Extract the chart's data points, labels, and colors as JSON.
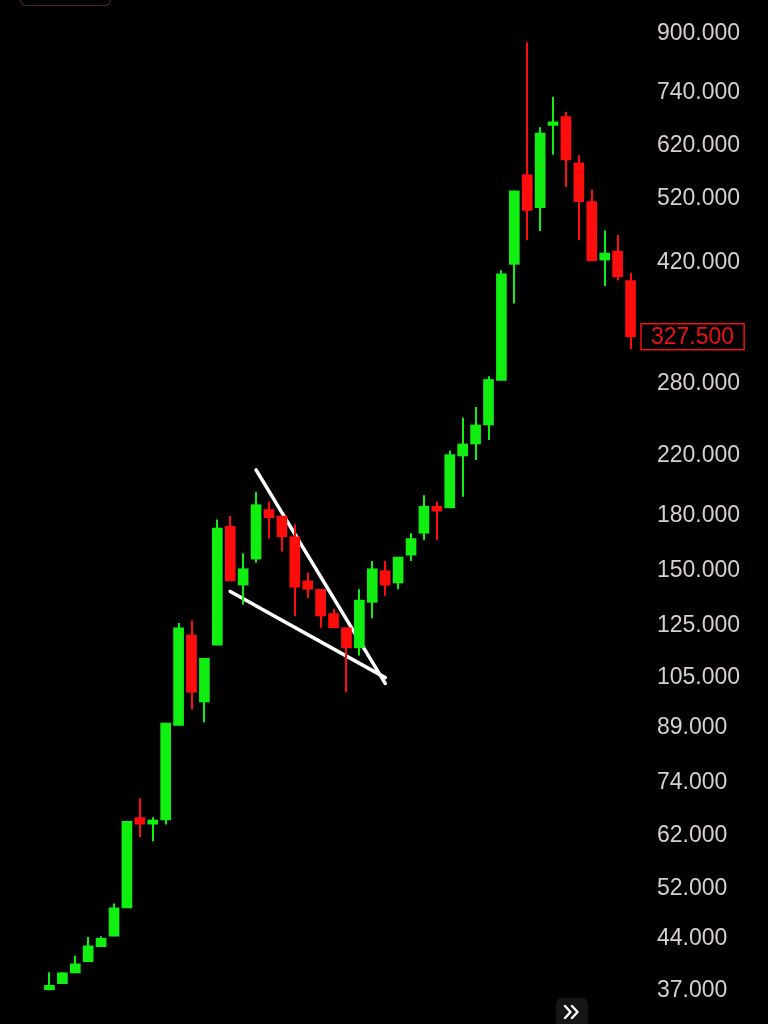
{
  "chart_data": {
    "type": "candlestick",
    "categories": [
      null,
      null,
      null,
      null,
      null,
      null,
      null,
      null,
      null,
      null,
      null,
      null,
      null,
      null,
      null,
      null,
      null,
      null,
      null,
      null,
      null,
      null,
      null,
      null,
      null,
      null,
      null,
      null,
      null,
      null,
      null,
      null,
      null,
      null,
      null,
      null,
      null,
      null,
      null,
      null,
      null,
      null,
      null,
      null,
      null,
      null
    ],
    "ohlc": [
      [
        37.0,
        39.3,
        37.0,
        37.6
      ],
      [
        37.8,
        39.3,
        37.8,
        39.2
      ],
      [
        39.2,
        41.5,
        39.2,
        40.4
      ],
      [
        40.7,
        44.2,
        40.7,
        42.9
      ],
      [
        42.8,
        44.3,
        42.8,
        44.0
      ],
      [
        44.3,
        49.4,
        44.3,
        48.7
      ],
      [
        48.7,
        65.1,
        48.7,
        65.0
      ],
      [
        65.8,
        70.2,
        61.7,
        64.4
      ],
      [
        64.4,
        65.9,
        60.8,
        65.3
      ],
      [
        65.3,
        90.3,
        64.3,
        90.2
      ],
      [
        89.5,
        126,
        89.5,
        124
      ],
      [
        121,
        127,
        94.4,
        100
      ],
      [
        96.8,
        112,
        90.5,
        112
      ],
      [
        117,
        178,
        117,
        173
      ],
      [
        174,
        180,
        145,
        145
      ],
      [
        143,
        159,
        134,
        151
      ],
      [
        156,
        195,
        154,
        187
      ],
      [
        184,
        189,
        167,
        179
      ],
      [
        180,
        180,
        160,
        168
      ],
      [
        168,
        175,
        129,
        142
      ],
      [
        145,
        149,
        137,
        141
      ],
      [
        141,
        141,
        124,
        129
      ],
      [
        130,
        132,
        124,
        124
      ],
      [
        124,
        124,
        100,
        116
      ],
      [
        116,
        141,
        113,
        136
      ],
      [
        135,
        155,
        128,
        151
      ],
      [
        150,
        155,
        138,
        143
      ],
      [
        144,
        157,
        141,
        157
      ],
      [
        158,
        170,
        155,
        167
      ],
      [
        170,
        193,
        166,
        186
      ],
      [
        186,
        189,
        166,
        183
      ],
      [
        185,
        224,
        185,
        221
      ],
      [
        220,
        250,
        192,
        229
      ],
      [
        229,
        259,
        217,
        244
      ],
      [
        244,
        287,
        232,
        284
      ],
      [
        283,
        409,
        283,
        404
      ],
      [
        417,
        533,
        366,
        533
      ],
      [
        562,
        875,
        452,
        499
      ],
      [
        504,
        659,
        466,
        646
      ],
      [
        663,
        729,
        601,
        671
      ],
      [
        683,
        694,
        540,
        591
      ],
      [
        585,
        600,
        452,
        514
      ],
      [
        514,
        535,
        422,
        422
      ],
      [
        423,
        467,
        388,
        433
      ],
      [
        436,
        460,
        395,
        400
      ],
      [
        395,
        405,
        314,
        327.5
      ]
    ],
    "colors": [
      "#11ee11",
      "#11ee11",
      "#11ee11",
      "#11ee11",
      "#11ee11",
      "#11ee11",
      "#11ee11",
      "#ff0d0d",
      "#11ee11",
      "#11ee11",
      "#11ee11",
      "#ff0d0d",
      "#11ee11",
      "#11ee11",
      "#ff0d0d",
      "#11ee11",
      "#11ee11",
      "#ff0d0d",
      "#ff0d0d",
      "#ff0d0d",
      "#ff0d0d",
      "#ff0d0d",
      "#ff0d0d",
      "#ff0d0d",
      "#11ee11",
      "#11ee11",
      "#ff0d0d",
      "#11ee11",
      "#11ee11",
      "#11ee11",
      "#ff0d0d",
      "#11ee11",
      "#11ee11",
      "#11ee11",
      "#11ee11",
      "#11ee11",
      "#11ee11",
      "#ff0d0d",
      "#11ee11",
      "#11ee11",
      "#ff0d0d",
      "#ff0d0d",
      "#ff0d0d",
      "#11ee11",
      "#ff0d0d",
      "#ff0d0d"
    ],
    "series": [
      {
        "type": "line",
        "color": "#ffffff",
        "values": [
          null,
          null,
          null,
          null,
          null,
          null,
          null,
          null,
          null,
          null,
          null,
          null,
          null,
          null,
          null,
          null,
          210,
          null,
          null,
          null,
          null,
          null,
          null,
          null,
          null,
          null,
          103,
          null,
          null,
          null,
          null,
          null,
          null,
          null,
          null,
          null,
          null,
          null,
          null,
          null,
          null,
          null,
          null,
          null,
          null,
          null
        ]
      },
      {
        "type": "line",
        "color": "#ffffff",
        "values": [
          null,
          null,
          null,
          null,
          null,
          null,
          null,
          null,
          null,
          null,
          null,
          null,
          null,
          null,
          140,
          null,
          null,
          null,
          null,
          null,
          null,
          null,
          null,
          null,
          null,
          null,
          105,
          null,
          null,
          null,
          null,
          null,
          null,
          null,
          null,
          null,
          null,
          null,
          null,
          null,
          null,
          null,
          null,
          null,
          null,
          null
        ]
      }
    ],
    "log": true,
    "ylim": [
      37,
      900
    ],
    "yticks": [
      {
        "value": 37,
        "label": "37.000"
      },
      {
        "value": 44,
        "label": "44.000"
      },
      {
        "value": 52,
        "label": "52.000"
      },
      {
        "value": 62,
        "label": "62.000"
      },
      {
        "value": 74,
        "label": "74.000"
      },
      {
        "value": 89,
        "label": "89.000"
      },
      {
        "value": 105,
        "label": "105.000"
      },
      {
        "value": 125,
        "label": "125.000"
      },
      {
        "value": 150,
        "label": "150.000"
      },
      {
        "value": 180,
        "label": "180.000"
      },
      {
        "value": 220,
        "label": "220.000"
      },
      {
        "value": 280,
        "label": "280.000"
      },
      {
        "value": 420,
        "label": "420.000"
      },
      {
        "value": 520,
        "label": "520.000"
      },
      {
        "value": 620,
        "label": "620.000"
      },
      {
        "value": 740,
        "label": "740.000"
      },
      {
        "value": 900,
        "label": "900.000"
      }
    ],
    "tick_labels": "y",
    "annotations": [
      "327.500"
    ]
  }
}
